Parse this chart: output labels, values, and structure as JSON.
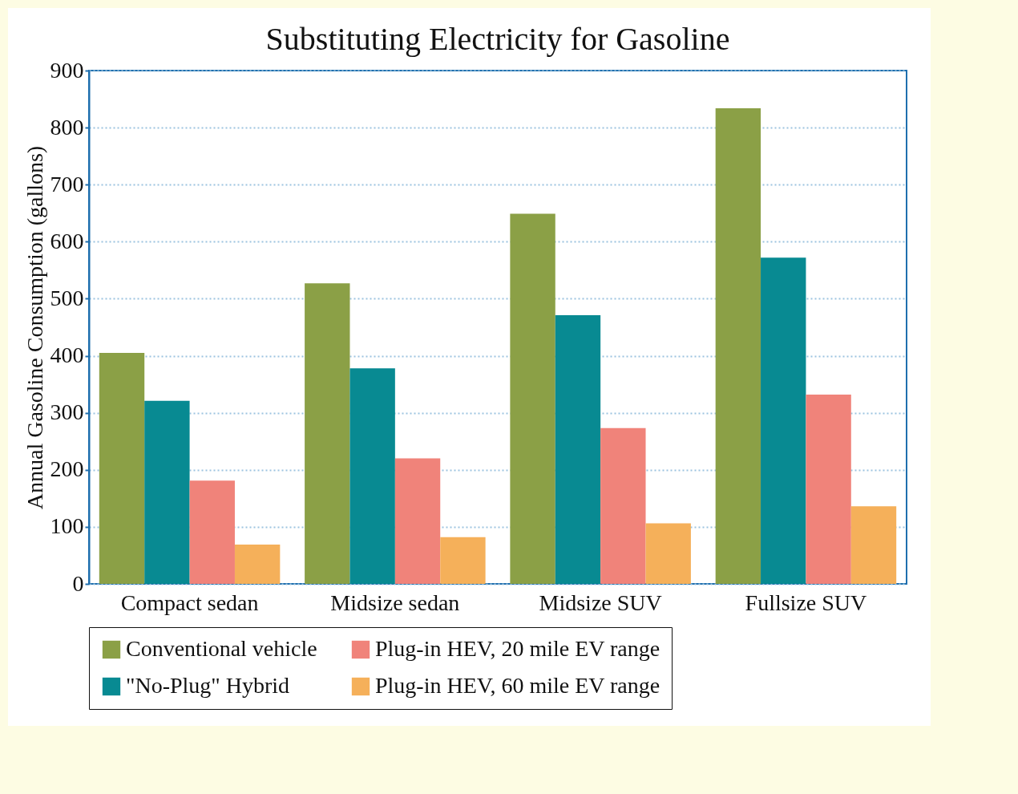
{
  "chart_data": {
    "type": "bar",
    "title": "Substituting Electricity for Gasoline",
    "ylabel": "Annual Gasoline Consumption (gallons)",
    "categories": [
      "Compact sedan",
      "Midsize sedan",
      "Midsize SUV",
      "Fullsize SUV"
    ],
    "series": [
      {
        "name": "Conventional vehicle",
        "color": "#8ba046",
        "values": [
          405,
          527,
          649,
          834
        ]
      },
      {
        "name": "\"No-Plug\" Hybrid",
        "color": "#088a92",
        "values": [
          321,
          378,
          471,
          572
        ]
      },
      {
        "name": "Plug-in HEV, 20 mile EV range",
        "color": "#f0837a",
        "values": [
          181,
          220,
          273,
          332
        ]
      },
      {
        "name": "Plug-in HEV, 60 mile EV range",
        "color": "#f5b05a",
        "values": [
          69,
          82,
          106,
          136
        ]
      }
    ],
    "ylim": [
      0,
      900
    ],
    "yticks": [
      0,
      100,
      200,
      300,
      400,
      500,
      600,
      700,
      800,
      900
    ],
    "grid": "y",
    "legend": "bottom"
  }
}
